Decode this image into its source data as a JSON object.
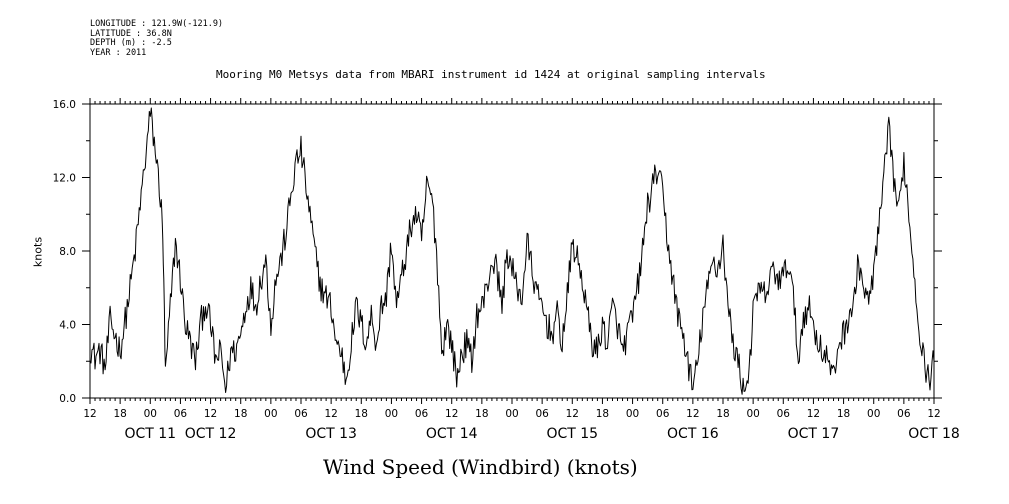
{
  "meta": {
    "longitude": "LONGITUDE : 121.9W(-121.9)",
    "latitude": "LATITUDE : 36.8N",
    "depth": "DEPTH (m) : -2.5",
    "year": "YEAR : 2011"
  },
  "chart_data": {
    "type": "line",
    "title": "Mooring M0 Metsys data from MBARI instrument id 1424 at original sampling intervals",
    "xlabel": "Wind Speed (Windbird) (knots)",
    "ylabel": "knots",
    "xlim": [
      0,
      168
    ],
    "ylim": [
      0,
      16
    ],
    "yticks": [
      0,
      4,
      8,
      12,
      16
    ],
    "ytick_labels": [
      "0.0",
      "4.0",
      "8.0",
      "12.0",
      "16.0"
    ],
    "xtick_labels": [
      "12",
      "18",
      "00",
      "06",
      "12",
      "18",
      "00",
      "06",
      "12",
      "18",
      "00",
      "06",
      "12",
      "18",
      "00",
      "06",
      "12",
      "18",
      "00",
      "06",
      "12",
      "18",
      "00",
      "06",
      "12",
      "18",
      "00",
      "06",
      "12"
    ],
    "day_labels": [
      {
        "hour": 12,
        "label": "OCT 11"
      },
      {
        "hour": 24,
        "label": "OCT 12"
      },
      {
        "hour": 48,
        "label": "OCT 13"
      },
      {
        "hour": 72,
        "label": "OCT 14"
      },
      {
        "hour": 96,
        "label": "OCT 15"
      },
      {
        "hour": 120,
        "label": "OCT 16"
      },
      {
        "hour": 144,
        "label": "OCT 17"
      },
      {
        "hour": 168,
        "label": "OCT 18"
      }
    ],
    "grid": false,
    "series": [
      {
        "name": "",
        "anchors": [
          [
            0,
            2.8
          ],
          [
            1,
            2.2
          ],
          [
            2,
            2.6
          ],
          [
            3,
            1.6
          ],
          [
            4,
            4.2
          ],
          [
            5,
            3.4
          ],
          [
            6,
            2.6
          ],
          [
            7,
            4.2
          ],
          [
            8,
            6.0
          ],
          [
            9,
            8.0
          ],
          [
            10,
            10.5
          ],
          [
            11,
            13.0
          ],
          [
            12,
            15.5
          ],
          [
            13,
            13.5
          ],
          [
            14,
            11.0
          ],
          [
            14.5,
            9.0
          ],
          [
            15,
            1.2
          ],
          [
            16,
            5.0
          ],
          [
            17,
            8.5
          ],
          [
            18,
            6.5
          ],
          [
            19,
            4.0
          ],
          [
            20,
            3.0
          ],
          [
            21,
            2.0
          ],
          [
            22,
            4.0
          ],
          [
            23,
            5.2
          ],
          [
            24,
            4.0
          ],
          [
            25,
            2.0
          ],
          [
            26,
            2.5
          ],
          [
            27,
            0.5
          ],
          [
            28,
            2.5
          ],
          [
            29,
            2.6
          ],
          [
            30,
            3.5
          ],
          [
            31,
            5.0
          ],
          [
            32,
            6.0
          ],
          [
            33,
            5.0
          ],
          [
            34,
            6.5
          ],
          [
            35,
            7.5
          ],
          [
            36,
            4.0
          ],
          [
            37,
            6.5
          ],
          [
            38,
            7.5
          ],
          [
            39,
            9.0
          ],
          [
            40,
            11.0
          ],
          [
            41,
            12.8
          ],
          [
            42,
            13.5
          ],
          [
            43,
            11.5
          ],
          [
            44,
            9.5
          ],
          [
            45,
            7.5
          ],
          [
            46,
            6.0
          ],
          [
            47,
            5.5
          ],
          [
            48,
            5.0
          ],
          [
            49,
            3.0
          ],
          [
            50,
            2.5
          ],
          [
            51,
            1.0
          ],
          [
            52,
            3.0
          ],
          [
            53,
            5.0
          ],
          [
            54,
            4.0
          ],
          [
            55,
            3.0
          ],
          [
            56,
            4.5
          ],
          [
            57,
            3.0
          ],
          [
            58,
            5.0
          ],
          [
            59,
            5.5
          ],
          [
            60,
            8.5
          ],
          [
            61,
            5.0
          ],
          [
            62,
            6.5
          ],
          [
            63,
            8.0
          ],
          [
            64,
            9.5
          ],
          [
            65,
            10.0
          ],
          [
            66,
            8.5
          ],
          [
            67,
            11.5
          ],
          [
            68,
            11.0
          ],
          [
            69,
            8.0
          ],
          [
            70,
            2.5
          ],
          [
            71,
            4.0
          ],
          [
            72,
            3.0
          ],
          [
            73,
            1.0
          ],
          [
            74,
            2.5
          ],
          [
            75,
            3.0
          ],
          [
            76,
            2.0
          ],
          [
            77,
            4.5
          ],
          [
            78,
            5.0
          ],
          [
            79,
            6.0
          ],
          [
            80,
            7.5
          ],
          [
            81,
            7.0
          ],
          [
            82,
            5.0
          ],
          [
            83,
            8.0
          ],
          [
            84,
            7.0
          ],
          [
            85,
            6.0
          ],
          [
            86,
            5.5
          ],
          [
            87,
            8.5
          ],
          [
            88,
            7.0
          ],
          [
            89,
            5.5
          ],
          [
            90,
            5.0
          ],
          [
            91,
            4.0
          ],
          [
            92,
            3.5
          ],
          [
            93,
            4.5
          ],
          [
            94,
            3.0
          ],
          [
            95,
            5.5
          ],
          [
            96,
            8.5
          ],
          [
            97,
            7.5
          ],
          [
            98,
            6.5
          ],
          [
            99,
            4.5
          ],
          [
            100,
            3.0
          ],
          [
            101,
            2.5
          ],
          [
            102,
            4.0
          ],
          [
            103,
            3.0
          ],
          [
            104,
            5.0
          ],
          [
            105,
            4.0
          ],
          [
            106,
            2.5
          ],
          [
            107,
            3.5
          ],
          [
            108,
            4.5
          ],
          [
            109,
            6.0
          ],
          [
            110,
            8.0
          ],
          [
            111,
            10.5
          ],
          [
            112,
            11.5
          ],
          [
            113,
            12.5
          ],
          [
            114,
            11.0
          ],
          [
            115,
            8.5
          ],
          [
            116,
            6.5
          ],
          [
            117,
            4.5
          ],
          [
            118,
            3.5
          ],
          [
            119,
            2.0
          ],
          [
            120,
            0.5
          ],
          [
            121,
            2.0
          ],
          [
            122,
            4.5
          ],
          [
            123,
            6.0
          ],
          [
            124,
            7.5
          ],
          [
            125,
            7.0
          ],
          [
            126,
            8.5
          ],
          [
            127,
            5.0
          ],
          [
            128,
            3.0
          ],
          [
            129,
            2.0
          ],
          [
            130,
            0.5
          ],
          [
            131,
            1.0
          ],
          [
            132,
            4.5
          ],
          [
            133,
            6.0
          ],
          [
            134,
            5.5
          ],
          [
            135,
            6.0
          ],
          [
            136,
            7.0
          ],
          [
            137,
            6.5
          ],
          [
            138,
            6.5
          ],
          [
            139,
            7.5
          ],
          [
            140,
            5.5
          ],
          [
            141,
            2.0
          ],
          [
            142,
            4.5
          ],
          [
            143,
            5.0
          ],
          [
            144,
            4.0
          ],
          [
            145,
            3.0
          ],
          [
            146,
            2.5
          ],
          [
            147,
            2.0
          ],
          [
            148,
            1.0
          ],
          [
            149,
            3.0
          ],
          [
            150,
            3.5
          ],
          [
            151,
            4.5
          ],
          [
            152,
            5.0
          ],
          [
            153,
            7.5
          ],
          [
            154,
            6.0
          ],
          [
            155,
            5.0
          ],
          [
            156,
            7.0
          ],
          [
            157,
            9.0
          ],
          [
            158,
            12.0
          ],
          [
            159,
            14.5
          ],
          [
            160,
            12.0
          ],
          [
            161,
            10.0
          ],
          [
            162,
            13.0
          ],
          [
            163,
            10.0
          ],
          [
            164,
            7.0
          ],
          [
            165,
            4.0
          ],
          [
            166,
            2.0
          ],
          [
            167,
            1.0
          ],
          [
            168,
            2.0
          ]
        ]
      }
    ]
  }
}
